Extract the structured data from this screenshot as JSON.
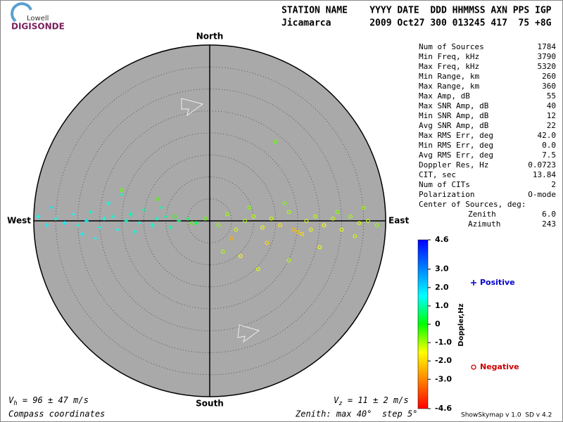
{
  "logo": {
    "top": "Lowell",
    "bottom": "DIGISONDE"
  },
  "header": {
    "columns": "STATION NAME    YYYY DATE  DDD HHMMSS AXN PPS IGP",
    "values": "Jicamarca       2009 Oct27 300 013245 417  75 +8G"
  },
  "stats": [
    {
      "label": "Num of Sources",
      "value": "1784"
    },
    {
      "label": "Min Freq, kHz",
      "value": "3790"
    },
    {
      "label": "Max Freq, kHz",
      "value": "5320"
    },
    {
      "label": "Min Range, km",
      "value": "260"
    },
    {
      "label": "Max Range, km",
      "value": "360"
    },
    {
      "label": "Max Amp, dB",
      "value": "55"
    },
    {
      "label": "Max SNR Amp, dB",
      "value": "40"
    },
    {
      "label": "Min SNR Amp, dB",
      "value": "12"
    },
    {
      "label": "Avg SNR Amp, dB",
      "value": "22"
    },
    {
      "label": "Max RMS Err, deg",
      "value": "42.0"
    },
    {
      "label": "Min RMS Err, deg",
      "value": "0.0"
    },
    {
      "label": "Avg RMS Err, deg",
      "value": "7.5"
    },
    {
      "label": "Doppler Res, Hz",
      "value": "0.0723"
    },
    {
      "label": "CIT, sec",
      "value": "13.84"
    },
    {
      "label": "Num of CITs",
      "value": "2"
    },
    {
      "label": "Polarization",
      "value": "O-mode"
    }
  ],
  "center": {
    "title": "Center of Sources, deg:",
    "rows": [
      {
        "label": "Zenith",
        "value": "6.0"
      },
      {
        "label": "Azimuth",
        "value": "243"
      }
    ]
  },
  "directions": {
    "north": "North",
    "south": "South",
    "east": "East",
    "west": "West"
  },
  "footer": {
    "vh": {
      "symbol": "V",
      "subscript": "h",
      "text": " = 96 ± 47 m/s"
    },
    "vz": {
      "symbol": "V",
      "subscript": "z",
      "text": " = 11 ± 2 m/s"
    },
    "coords": "Compass coordinates",
    "zenith": "Zenith: max 40°  step 5°",
    "version": "ShowSkymap v 1.0  SD v 4.2"
  },
  "chart_data": {
    "type": "scatter",
    "xlim": [
      -40,
      40
    ],
    "ylim": [
      -40,
      40
    ],
    "ring_step": 5,
    "zlim": [
      -4.6,
      4.6
    ],
    "zlabel": "Doppler,Hz",
    "zticks": [
      4.6,
      {
        "value": 3,
        "label": "3.0"
      },
      {
        "value": 2,
        "label": "2.0"
      },
      {
        "value": 1,
        "label": "1.0"
      },
      0,
      {
        "value": -1,
        "label": "-1.0"
      },
      {
        "value": -2,
        "label": "-2.0"
      },
      {
        "value": -3,
        "label": "-3.0"
      },
      -4.6
    ],
    "colors": [
      "#ff0000",
      "#ff8000",
      "#ffff00",
      "#00ff00",
      "#00ffff",
      "#0080ff",
      "#0000ff"
    ],
    "series": [
      {
        "name": "Positive",
        "color": "#0000cc",
        "marker": "plus",
        "x": [
          -39,
          -37,
          -35,
          -33,
          -31,
          -30,
          -28,
          -27,
          -25,
          -24,
          -22,
          -21,
          -19,
          -18,
          -16,
          -15,
          -13,
          -12,
          -10,
          -9,
          -7,
          -5,
          -3,
          -36,
          -29,
          -23,
          -17,
          -11,
          -20,
          -26
        ],
        "y": [
          1,
          -1,
          0.5,
          -0.5,
          1.5,
          -1,
          0,
          2,
          -1.5,
          0.5,
          1,
          -2,
          0,
          1.5,
          -0.5,
          2.5,
          -1,
          0.5,
          1,
          -1.5,
          0,
          0.5,
          -0.5,
          3,
          -3,
          4,
          -2.5,
          3,
          6,
          -4
        ],
        "doppler": [
          1.5,
          1.6,
          1.4,
          1.7,
          1.5,
          1.3,
          1.6,
          1.2,
          1.5,
          1.4,
          1.3,
          1.5,
          1.2,
          1.1,
          1.4,
          1.0,
          1.3,
          1.2,
          0.9,
          1.1,
          0.8,
          0.6,
          0.5,
          1.8,
          1.6,
          1.4,
          1.3,
          1.0,
          1.2,
          1.5
        ]
      },
      {
        "name": "Negative",
        "color": "#cc0000",
        "marker": "circle",
        "x": [
          -8,
          -4,
          -1,
          2,
          4,
          6,
          8,
          10,
          12,
          14,
          16,
          18,
          20,
          22,
          24,
          26,
          28,
          30,
          32,
          34,
          36,
          38,
          5,
          9,
          13,
          17,
          21,
          25,
          29,
          33,
          3,
          7,
          15,
          19,
          -12,
          -20,
          18,
          35,
          11,
          23
        ],
        "y": [
          1,
          -0.5,
          0.5,
          -1,
          1.5,
          -2,
          0,
          1,
          -1.5,
          0.5,
          -1,
          2,
          -2.5,
          0,
          1,
          -1,
          0.5,
          -2,
          1,
          -0.5,
          0,
          -1,
          -4,
          3,
          -5,
          4,
          -3,
          -6,
          2,
          -3.5,
          -7,
          -8,
          18,
          -2,
          5,
          7,
          -9,
          3,
          -11,
          -2
        ],
        "doppler": [
          -0.3,
          -0.5,
          -0.6,
          -0.8,
          -0.9,
          -1.2,
          -1.0,
          -1.1,
          -1.5,
          -1.2,
          -1.8,
          -1.0,
          -2.2,
          -1.3,
          -1.1,
          -1.6,
          -1.2,
          -1.4,
          -1.0,
          -1.3,
          -1.1,
          -0.9,
          -2.5,
          -0.8,
          -2.0,
          -0.7,
          -1.9,
          -1.5,
          -0.8,
          -1.2,
          -1.0,
          -1.6,
          -0.6,
          -2.4,
          -0.4,
          -0.6,
          -1.1,
          -0.9,
          -1.3,
          -1.4
        ]
      }
    ]
  }
}
